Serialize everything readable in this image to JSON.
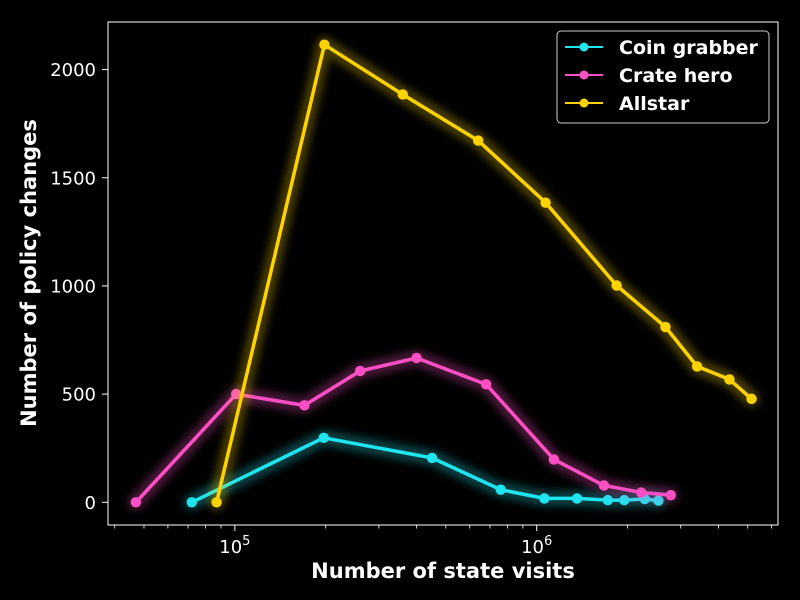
{
  "chart_data": {
    "type": "line",
    "xlabel": "Number of state visits",
    "ylabel": "Number of policy changes",
    "xscale": "log",
    "xlim": [
      38000,
      6300000
    ],
    "ylim": [
      -105,
      2220
    ],
    "x_ticks": [
      {
        "value": 100000,
        "base": "10",
        "exp": "5"
      },
      {
        "value": 1000000,
        "base": "10",
        "exp": "6"
      }
    ],
    "y_ticks": [
      0,
      500,
      1000,
      1500,
      2000
    ],
    "grid": false,
    "legend_position": "top-right",
    "background": "#000000",
    "series": [
      {
        "name": "Coin grabber",
        "color": "#1fe5f0",
        "x": [
          72000,
          197000,
          450000,
          760000,
          1060000,
          1360000,
          1720000,
          1950000,
          2280000,
          2530000
        ],
        "y": [
          0,
          298,
          205,
          58,
          18,
          18,
          10,
          10,
          15,
          8
        ]
      },
      {
        "name": "Crate hero",
        "color": "#ff4fc4",
        "x": [
          47000,
          101000,
          170000,
          260000,
          400000,
          680000,
          1140000,
          1670000,
          2220000,
          2780000
        ],
        "y": [
          0,
          500,
          448,
          607,
          667,
          545,
          198,
          78,
          45,
          33
        ]
      },
      {
        "name": "Allstar",
        "color": "#ffd300",
        "x": [
          87000,
          198000,
          360000,
          640000,
          1070000,
          1840000,
          2670000,
          3400000,
          4350000,
          5150000
        ],
        "y": [
          0,
          2115,
          1885,
          1672,
          1385,
          1002,
          810,
          628,
          568,
          478
        ]
      }
    ]
  }
}
